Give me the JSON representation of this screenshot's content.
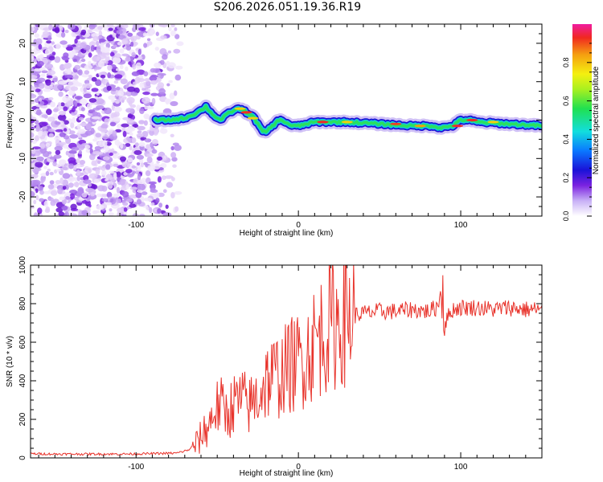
{
  "title": "S206.2026.051.19.36.R19",
  "colors": {
    "snr_line": "#e8332b",
    "axis": "#000000",
    "background": "#ffffff",
    "noise_light": "#e2ccf8",
    "noise_dark": "#7a22e0"
  },
  "chart_data": [
    {
      "type": "heatmap",
      "name": "spectrogram",
      "xlabel": "Height of straight line (km)",
      "ylabel": "Frequency (Hz)",
      "xlim": [
        -165,
        150
      ],
      "ylim": [
        -25,
        25
      ],
      "x_ticks": [
        -100,
        0,
        100
      ],
      "y_ticks": [
        -20,
        -10,
        0,
        10,
        20
      ],
      "colorbar": {
        "label": "Normalized spectral amplitude",
        "range": [
          0,
          1
        ],
        "ticks": [
          0.0,
          0.2,
          0.4,
          0.6,
          0.8
        ],
        "tick_labels": [
          "0.0",
          "0.2",
          "0.4",
          "0.6",
          "0.8"
        ]
      },
      "noise_region": [
        -165,
        -75
      ],
      "signal_trace": {
        "x": [
          -88,
          -80,
          -70,
          -62,
          -57,
          -53,
          -48,
          -44,
          -40,
          -36,
          -32,
          -28,
          -25,
          -22,
          -20,
          -16,
          -12,
          -8,
          -4,
          0,
          10,
          30,
          50,
          70,
          82,
          88,
          95,
          100,
          105,
          110,
          130,
          150
        ],
        "freq": [
          0,
          0,
          0.5,
          2,
          3.5,
          1.5,
          0,
          1.5,
          2.5,
          3,
          2,
          1,
          -1,
          -3,
          -3,
          -1.5,
          0,
          -0.5,
          -1.5,
          -1.5,
          -0.5,
          -0.5,
          -1,
          -1.5,
          -1.5,
          -2,
          -1.5,
          0,
          0,
          -0.5,
          -1,
          -1.5
        ]
      }
    },
    {
      "type": "line",
      "name": "snr",
      "xlabel": "Height of straight line (km)",
      "ylabel": "SNR (10 * v/v)",
      "xlim": [
        -165,
        150
      ],
      "ylim": [
        0,
        1000
      ],
      "x_ticks": [
        -100,
        0,
        100
      ],
      "y_ticks": [
        0,
        200,
        400,
        600,
        800,
        1000
      ],
      "series": [
        {
          "name": "SNR",
          "x": [
            -165,
            -150,
            -130,
            -110,
            -90,
            -75,
            -68,
            -62,
            -58,
            -55,
            -52,
            -48,
            -44,
            -40,
            -35,
            -30,
            -25,
            -20,
            -15,
            -10,
            -5,
            0,
            5,
            10,
            15,
            20,
            25,
            30,
            35,
            40,
            50,
            60,
            70,
            80,
            85,
            88,
            89,
            90,
            95,
            100,
            110,
            120,
            130,
            140,
            150
          ],
          "values": [
            22,
            20,
            20,
            20,
            22,
            25,
            40,
            80,
            140,
            170,
            250,
            270,
            230,
            280,
            300,
            270,
            320,
            400,
            420,
            440,
            480,
            500,
            540,
            600,
            650,
            690,
            710,
            740,
            740,
            750,
            760,
            760,
            770,
            760,
            780,
            850,
            900,
            700,
            770,
            780,
            780,
            770,
            780,
            770,
            770
          ]
        }
      ]
    }
  ]
}
